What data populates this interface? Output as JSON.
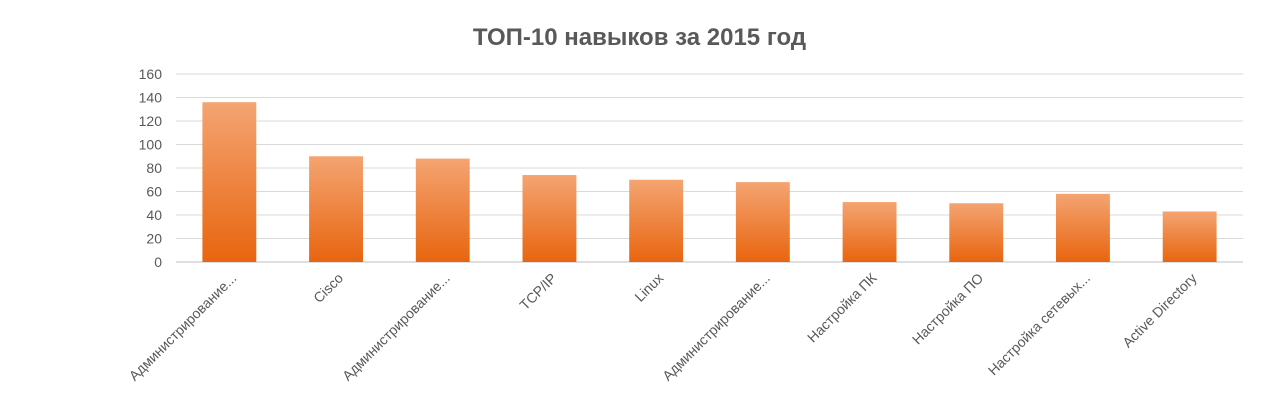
{
  "chart_data": {
    "type": "bar",
    "title": "ТОП-10 навыков за 2015 год",
    "categories": [
      "Администрирование...",
      "Cisco",
      "Администрирование...",
      "TCP/IP",
      "Linux",
      "Администрирование...",
      "Настройка ПК",
      "Настройка ПО",
      "Настройка сетевых...",
      "Active Directory"
    ],
    "values": [
      136,
      90,
      88,
      74,
      70,
      68,
      51,
      50,
      58,
      43
    ],
    "ylim": [
      0,
      160
    ],
    "yticks": [
      0,
      20,
      40,
      60,
      80,
      100,
      120,
      140,
      160
    ],
    "grid": true,
    "legend": "none",
    "colors": {
      "bar_top": "#f4a472",
      "bar_bottom": "#e8650f",
      "grid": "#d9d9d9",
      "text": "#595959"
    }
  }
}
